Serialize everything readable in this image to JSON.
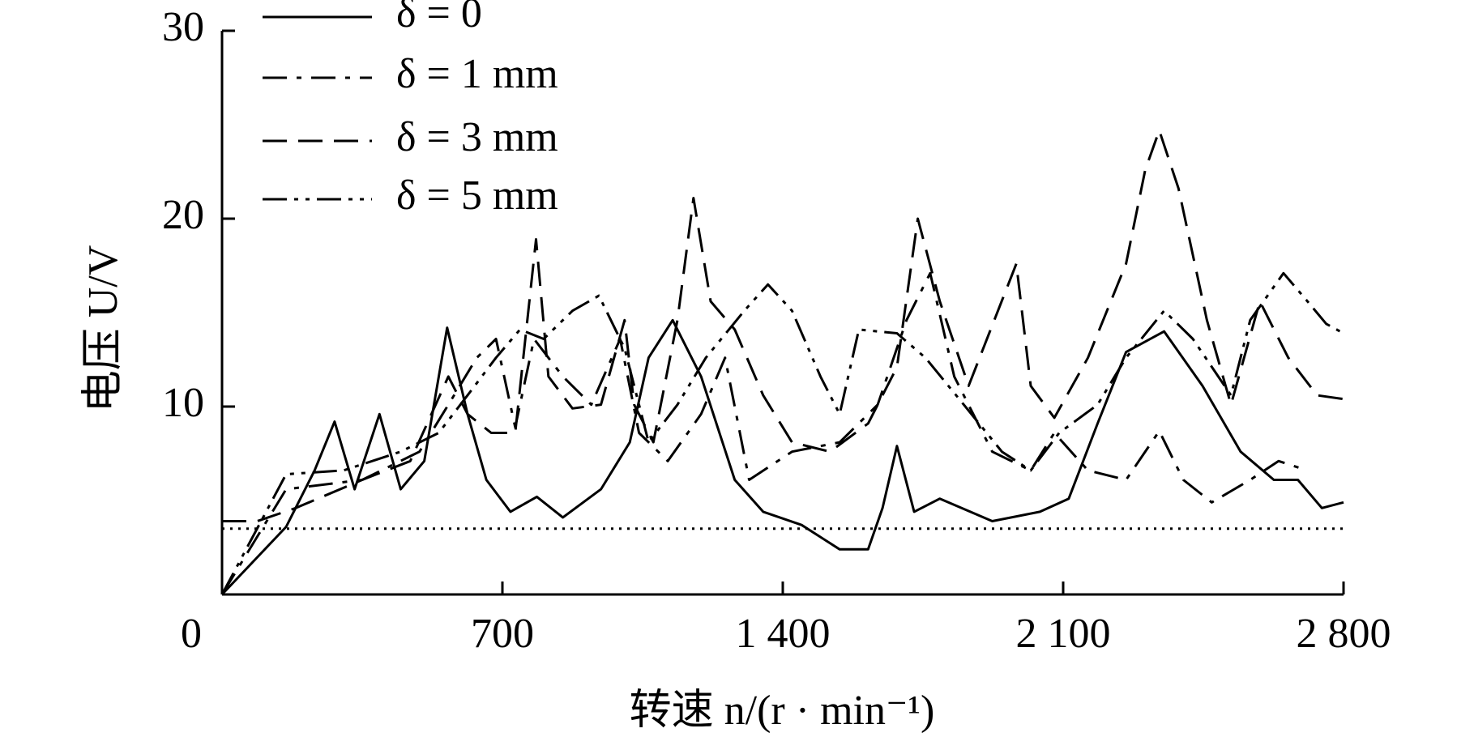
{
  "chart_data": {
    "type": "line",
    "xlabel": "转速 n/(r · min⁻¹)",
    "ylabel": "电压 U/V",
    "xlim": [
      0,
      2800
    ],
    "ylim": [
      0,
      30
    ],
    "xticks": [
      0,
      700,
      {
        "value": 1400,
        "label": "1 400"
      },
      {
        "value": 2100,
        "label": "2 100"
      },
      {
        "value": 2800,
        "label": "2 800"
      }
    ],
    "yticks": [
      10,
      20,
      30
    ],
    "reference_line": 3.5,
    "legend": "upper left",
    "series": [
      {
        "name": "δ = 0",
        "color": "#000000",
        "dash": "solid",
        "x": [
          0,
          160,
          231,
          281,
          331,
          393,
          446,
          505,
          562,
          613,
          660,
          720,
          786,
          851,
          946,
          1018,
          1065,
          1125,
          1196,
          1280,
          1351,
          1447,
          1542,
          1613,
          1649,
          1685,
          1728,
          1792,
          1923,
          2042,
          2114,
          2186,
          2257,
          2352,
          2448,
          2543,
          2626,
          2686,
          2746,
          2800
        ],
        "values": [
          0,
          3.6,
          6.6,
          9.2,
          5.6,
          9.6,
          5.6,
          7.1,
          14.2,
          9.6,
          6.1,
          4.4,
          5.2,
          4.1,
          5.6,
          8.1,
          12.6,
          14.6,
          11.6,
          6.1,
          4.4,
          3.7,
          2.4,
          2.4,
          4.6,
          7.9,
          4.4,
          5.1,
          3.9,
          4.4,
          5.1,
          9.1,
          12.9,
          14.0,
          11.1,
          7.6,
          6.1,
          6.1,
          4.6,
          4.9
        ]
      },
      {
        "name": "δ = 1 mm",
        "color": "#000000",
        "dash": "dash-dot",
        "x": [
          0,
          160,
          350,
          493,
          565,
          636,
          684,
          732,
          779,
          851,
          922,
          994,
          1041,
          1113,
          1196,
          1256,
          1316,
          1423,
          1542,
          1637,
          1709,
          1768,
          1828,
          1923,
          2019,
          2078,
          2162,
          2257,
          2340,
          2400,
          2471,
          2567,
          2638,
          2710
        ],
        "values": [
          0,
          5.6,
          6.1,
          7.6,
          10.1,
          12.6,
          13.6,
          8.9,
          13.6,
          11.6,
          10.1,
          13.6,
          8.6,
          7.1,
          9.6,
          12.6,
          6.1,
          7.6,
          8.1,
          10.1,
          14.6,
          17.1,
          11.6,
          7.6,
          6.6,
          8.6,
          6.6,
          6.1,
          8.7,
          6.1,
          4.9,
          6.1,
          7.1,
          6.6
        ]
      },
      {
        "name": "δ = 3 mm",
        "color": "#000000",
        "dash": "dashed",
        "x": [
          0,
          88,
          184,
          350,
          470,
          565,
          613,
          672,
          732,
          784,
          815,
          875,
          946,
          1005,
          1029,
          1077,
          1137,
          1177,
          1220,
          1280,
          1351,
          1423,
          1518,
          1613,
          1685,
          1737,
          1792,
          1864,
          1983,
          2019,
          2078,
          2162,
          2257,
          2305,
          2340,
          2388,
          2459,
          2519,
          2591,
          2662,
          2734,
          2800
        ],
        "values": [
          3.9,
          3.9,
          4.6,
          6.1,
          7.1,
          11.6,
          9.6,
          8.6,
          8.6,
          18.9,
          11.6,
          9.9,
          10.1,
          14.6,
          10.1,
          8.1,
          14.6,
          21.1,
          15.6,
          14.1,
          10.6,
          8.1,
          7.6,
          9.1,
          12.1,
          20.0,
          15.6,
          11.1,
          17.6,
          11.1,
          9.4,
          12.6,
          17.6,
          22.6,
          24.7,
          21.6,
          14.6,
          10.1,
          15.6,
          12.6,
          10.6,
          10.4
        ]
      },
      {
        "name": "δ = 5 mm",
        "color": "#000000",
        "dash": "dash-dot-dot",
        "x": [
          0,
          160,
          303,
          446,
          541,
          613,
          684,
          744,
          803,
          875,
          941,
          1005,
          1065,
          1137,
          1208,
          1304,
          1363,
          1423,
          1494,
          1542,
          1590,
          1685,
          1756,
          1852,
          1947,
          2019,
          2090,
          2186,
          2257,
          2352,
          2424,
          2519,
          2567,
          2650,
          2710,
          2757,
          2800
        ],
        "values": [
          0,
          6.4,
          6.6,
          7.6,
          8.6,
          10.6,
          12.6,
          14.1,
          13.6,
          15.1,
          15.9,
          13.1,
          8.1,
          10.1,
          12.6,
          15.1,
          16.5,
          15.1,
          11.6,
          9.6,
          14.1,
          13.9,
          12.6,
          10.1,
          7.6,
          6.6,
          8.6,
          10.1,
          12.6,
          15.1,
          13.6,
          10.6,
          14.6,
          17.1,
          15.6,
          14.4,
          13.9
        ]
      }
    ]
  }
}
